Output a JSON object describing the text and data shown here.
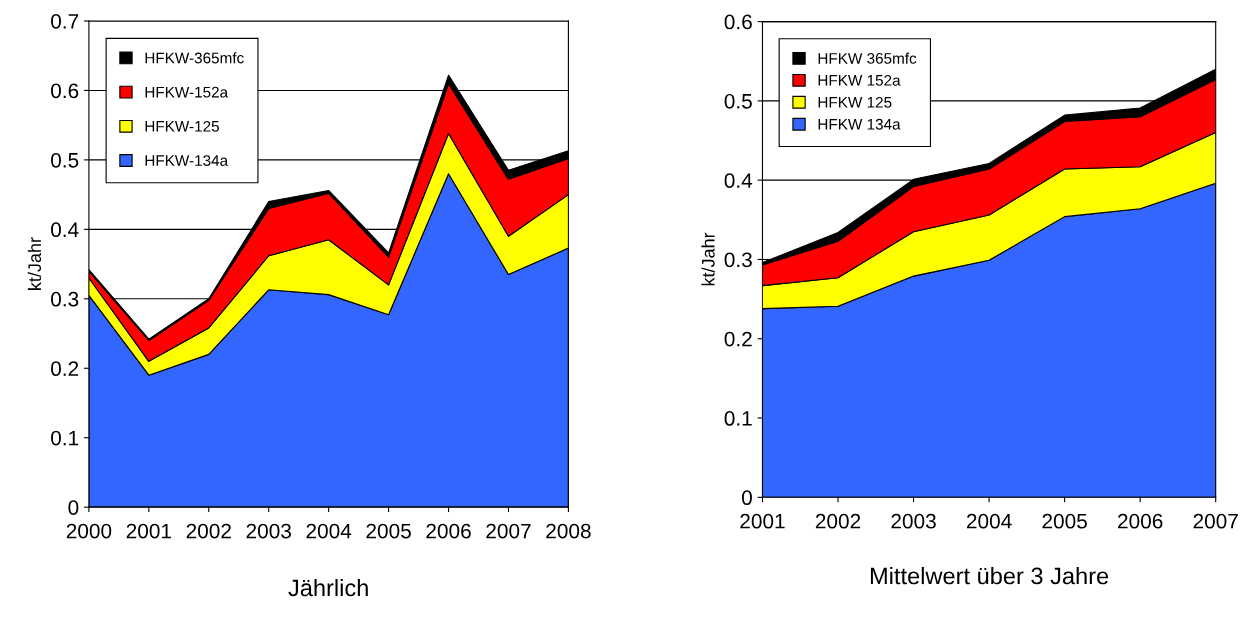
{
  "chart_data": [
    {
      "type": "area",
      "stacked": true,
      "title": "Jährlich",
      "ylabel": "kt/Jahr",
      "legend": "top left",
      "grid": "y",
      "x": [
        2000,
        2001,
        2002,
        2003,
        2004,
        2005,
        2006,
        2007,
        2008
      ],
      "xlim": [
        2000,
        2008
      ],
      "xticks": [
        2000,
        2001,
        2002,
        2003,
        2004,
        2005,
        2006,
        2007,
        2008
      ],
      "ylim": [
        0,
        0.7
      ],
      "yticks": [
        0,
        0.1,
        0.2,
        0.3,
        0.4,
        0.5,
        0.6,
        0.7
      ],
      "series": [
        {
          "name": "HFKW-134a",
          "color": "#3366ff",
          "values": [
            0.305,
            0.19,
            0.22,
            0.313,
            0.306,
            0.277,
            0.48,
            0.335,
            0.373
          ]
        },
        {
          "name": "HFKW-125",
          "color": "#ffff00",
          "values": [
            0.025,
            0.02,
            0.038,
            0.049,
            0.079,
            0.043,
            0.058,
            0.055,
            0.077
          ]
        },
        {
          "name": "HFKW-152a",
          "color": "#ff0000",
          "values": [
            0.01,
            0.03,
            0.04,
            0.068,
            0.067,
            0.04,
            0.072,
            0.082,
            0.052
          ]
        },
        {
          "name": "HFKW-365mfc",
          "color": "#000000",
          "values": [
            0.002,
            0.002,
            0.002,
            0.01,
            0.004,
            0.006,
            0.012,
            0.013,
            0.011
          ]
        }
      ]
    },
    {
      "type": "area",
      "stacked": true,
      "title": "Mittelwert über 3 Jahre",
      "ylabel": "kt/Jahr",
      "legend": "top left",
      "grid": "y",
      "x": [
        2001,
        2002,
        2003,
        2004,
        2005,
        2006,
        2007
      ],
      "xlim": [
        2001,
        2007
      ],
      "xticks": [
        2001,
        2002,
        2003,
        2004,
        2005,
        2006,
        2007
      ],
      "ylim": [
        0,
        0.6
      ],
      "yticks": [
        0,
        0.1,
        0.2,
        0.3,
        0.4,
        0.5,
        0.6
      ],
      "series": [
        {
          "name": "HFKW 134a",
          "color": "#3366ff",
          "values": [
            0.238,
            0.241,
            0.279,
            0.299,
            0.354,
            0.364,
            0.396
          ]
        },
        {
          "name": "HFKW 125",
          "color": "#ffff00",
          "values": [
            0.029,
            0.036,
            0.056,
            0.057,
            0.06,
            0.053,
            0.064
          ]
        },
        {
          "name": "HFKW 152a",
          "color": "#ff0000",
          "values": [
            0.026,
            0.046,
            0.057,
            0.058,
            0.06,
            0.063,
            0.067
          ]
        },
        {
          "name": "HFKW 365mfc",
          "color": "#000000",
          "values": [
            0.003,
            0.011,
            0.009,
            0.007,
            0.008,
            0.011,
            0.013
          ]
        }
      ]
    }
  ]
}
